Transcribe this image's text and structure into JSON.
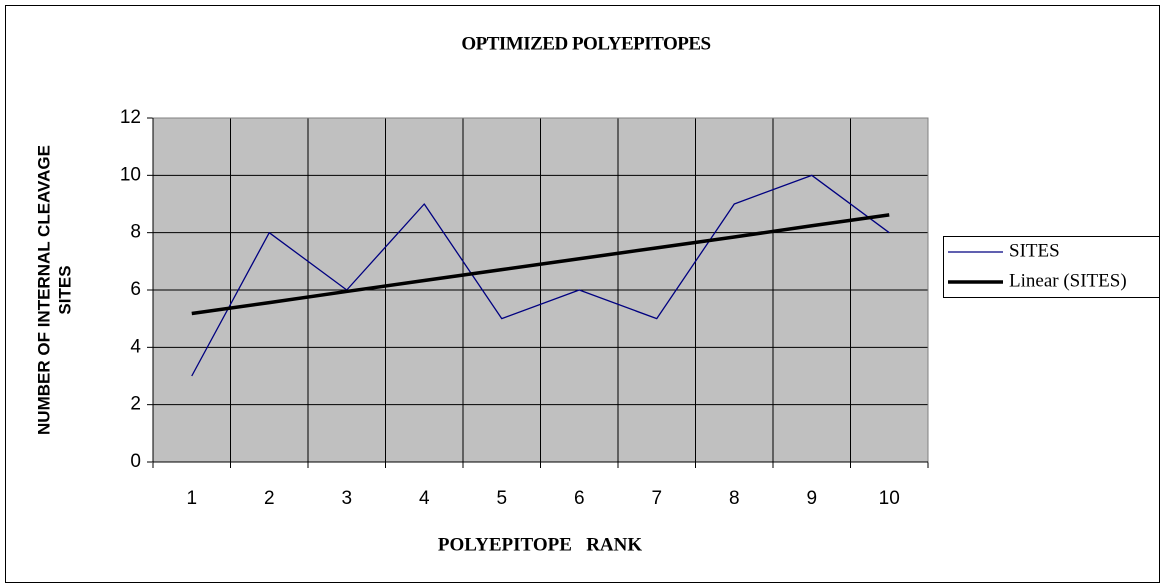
{
  "chart_data": {
    "type": "line",
    "title": "OPTIMIZED POLYEPITOPES",
    "x_label": "POLYEPITOPE   RANK",
    "y_label": [
      "NUMBER OF INTERNAL CLEAVAGE",
      "SITES"
    ],
    "categories": [
      "1",
      "2",
      "3",
      "4",
      "5",
      "6",
      "7",
      "8",
      "9",
      "10"
    ],
    "series": [
      {
        "name": "SITES",
        "color": "#000080",
        "width": 1.3,
        "values": [
          3,
          8,
          6,
          9,
          5,
          6,
          5,
          9,
          10,
          8
        ]
      },
      {
        "name": "Linear (SITES)",
        "color": "#000000",
        "width": 3.5,
        "values": [
          5.18,
          5.56,
          5.95,
          6.33,
          6.71,
          7.09,
          7.47,
          7.85,
          8.24,
          8.62
        ]
      }
    ],
    "ylim": [
      0,
      12
    ],
    "yticks": [
      0,
      2,
      4,
      6,
      8,
      10,
      12
    ],
    "grid": true,
    "legend": "right",
    "plot_background": "#c0c0c0"
  }
}
